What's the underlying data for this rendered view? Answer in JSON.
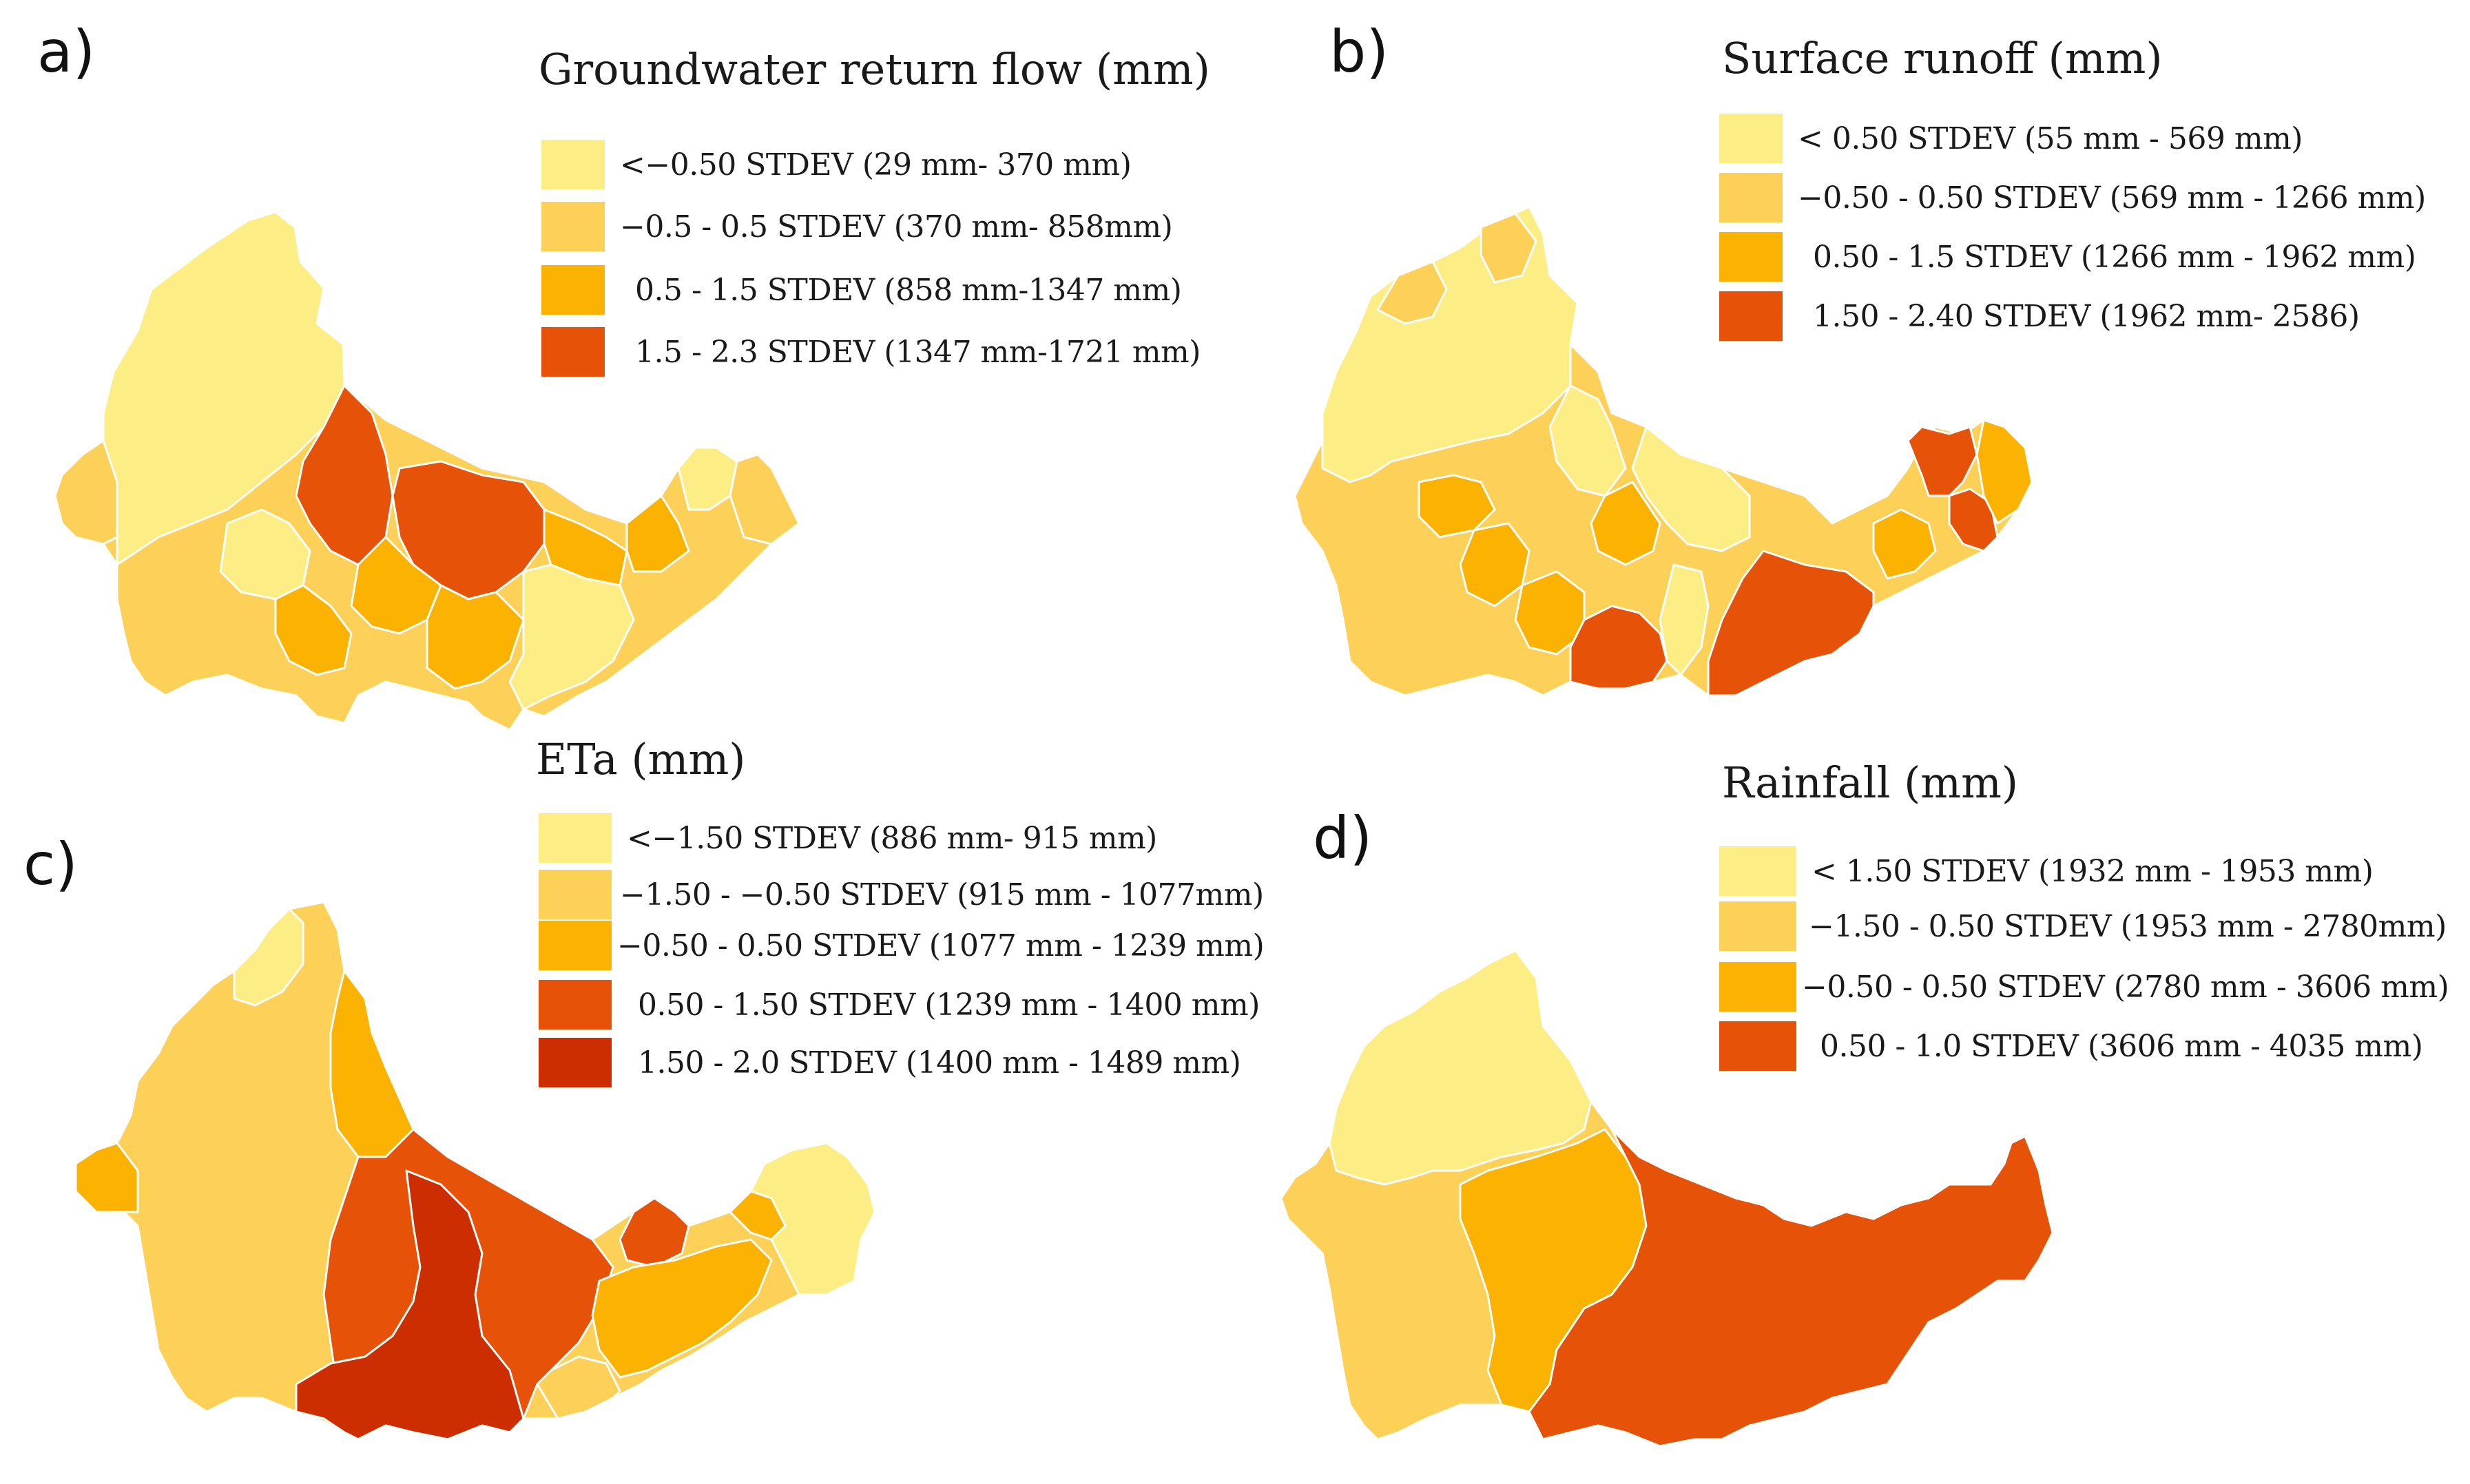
{
  "colors": {
    "c1": "#FCEE85",
    "c2": "#FDD058",
    "c3": "#FCB200",
    "c4": "#E65208",
    "c5": "#CC2E00"
  },
  "panels": {
    "a": {
      "letter": "a)",
      "title": "Groundwater return flow (mm)",
      "legend": [
        {
          "label": "<−0.50 STDEV (29 mm- 370 mm)",
          "color": "#FCEE85"
        },
        {
          "label": "−0.5 - 0.5 STDEV (370 mm- 858mm)",
          "color": "#FDD058"
        },
        {
          "label": "0.5 - 1.5 STDEV (858 mm-1347 mm)",
          "color": "#FCB200"
        },
        {
          "label": "1.5 - 2.3 STDEV (1347 mm-1721 mm)",
          "color": "#E65208"
        }
      ]
    },
    "b": {
      "letter": "b)",
      "title": "Surface runoff (mm)",
      "legend": [
        {
          "label": "< 0.50 STDEV (55 mm - 569 mm)",
          "color": "#FCEE85"
        },
        {
          "label": "−0.50 - 0.50 STDEV (569 mm - 1266 mm)",
          "color": "#FDD058"
        },
        {
          "label": "0.50 - 1.5 STDEV (1266 mm - 1962 mm)",
          "color": "#FCB200"
        },
        {
          "label": "1.50 - 2.40 STDEV (1962 mm- 2586)",
          "color": "#E65208"
        }
      ]
    },
    "c": {
      "letter": "c)",
      "title": "ETa (mm)",
      "legend": [
        {
          "label": "<−1.50 STDEV (886 mm- 915 mm)",
          "color": "#FCEE85"
        },
        {
          "label": "−1.50 - −0.50 STDEV (915 mm - 1077mm)",
          "color": "#FDD058"
        },
        {
          "label": "−0.50 - 0.50 STDEV (1077 mm - 1239 mm)",
          "color": "#FCB200"
        },
        {
          "label": "0.50 - 1.50 STDEV (1239 mm - 1400 mm)",
          "color": "#E65208"
        },
        {
          "label": "1.50 - 2.0 STDEV (1400 mm - 1489 mm)",
          "color": "#CC2E00"
        }
      ]
    },
    "d": {
      "letter": "d)",
      "title": "Rainfall (mm)",
      "legend": [
        {
          "label": "< 1.50 STDEV (1932 mm - 1953 mm)",
          "color": "#FCEE85"
        },
        {
          "label": "−1.50 - 0.50 STDEV (1953 mm - 2780mm)",
          "color": "#FDD058"
        },
        {
          "label": "−0.50 - 0.50 STDEV (2780 mm - 3606 mm)",
          "color": "#FCB200"
        },
        {
          "label": "0.50 - 1.0 STDEV (3606 mm - 4035 mm)",
          "color": "#E65208"
        }
      ]
    }
  }
}
